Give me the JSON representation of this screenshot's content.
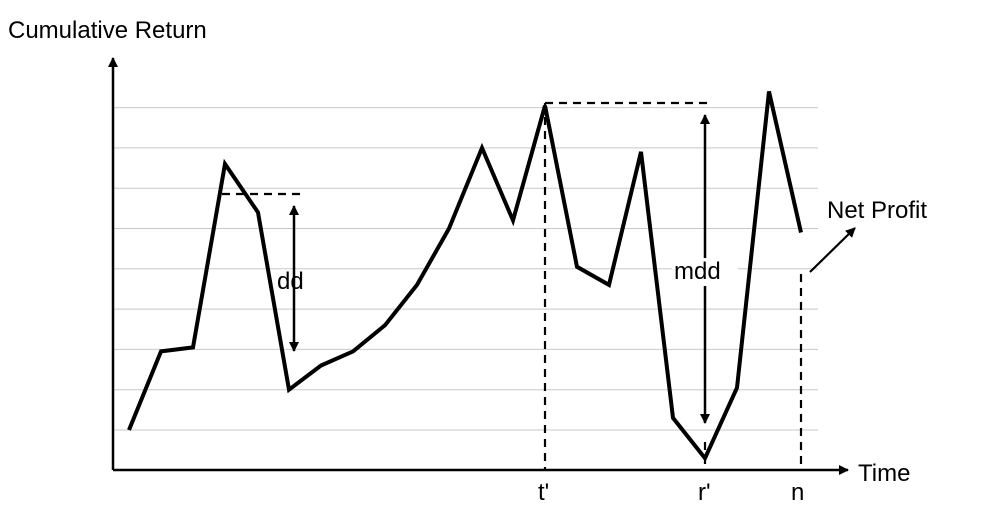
{
  "chart_data": {
    "type": "line",
    "ylabel": "Cumulative Return",
    "xlabel": "Time",
    "grid": true,
    "gridlines": 9,
    "series": [
      {
        "values": [
          1.0,
          2.95,
          3.05,
          7.6,
          6.4,
          2.0,
          2.6,
          2.95,
          3.6,
          4.6,
          6.0,
          8.0,
          6.2,
          9.05,
          5.05,
          4.6,
          7.9,
          1.3,
          0.3,
          2.05,
          9.4,
          5.9
        ]
      }
    ],
    "markers": {
      "peak_label": "t'",
      "trough_label": "r'",
      "end_label": "n"
    },
    "annotations": {
      "drawdown": "dd",
      "max_drawdown": "mdd",
      "net_profit": "Net Profit"
    }
  }
}
